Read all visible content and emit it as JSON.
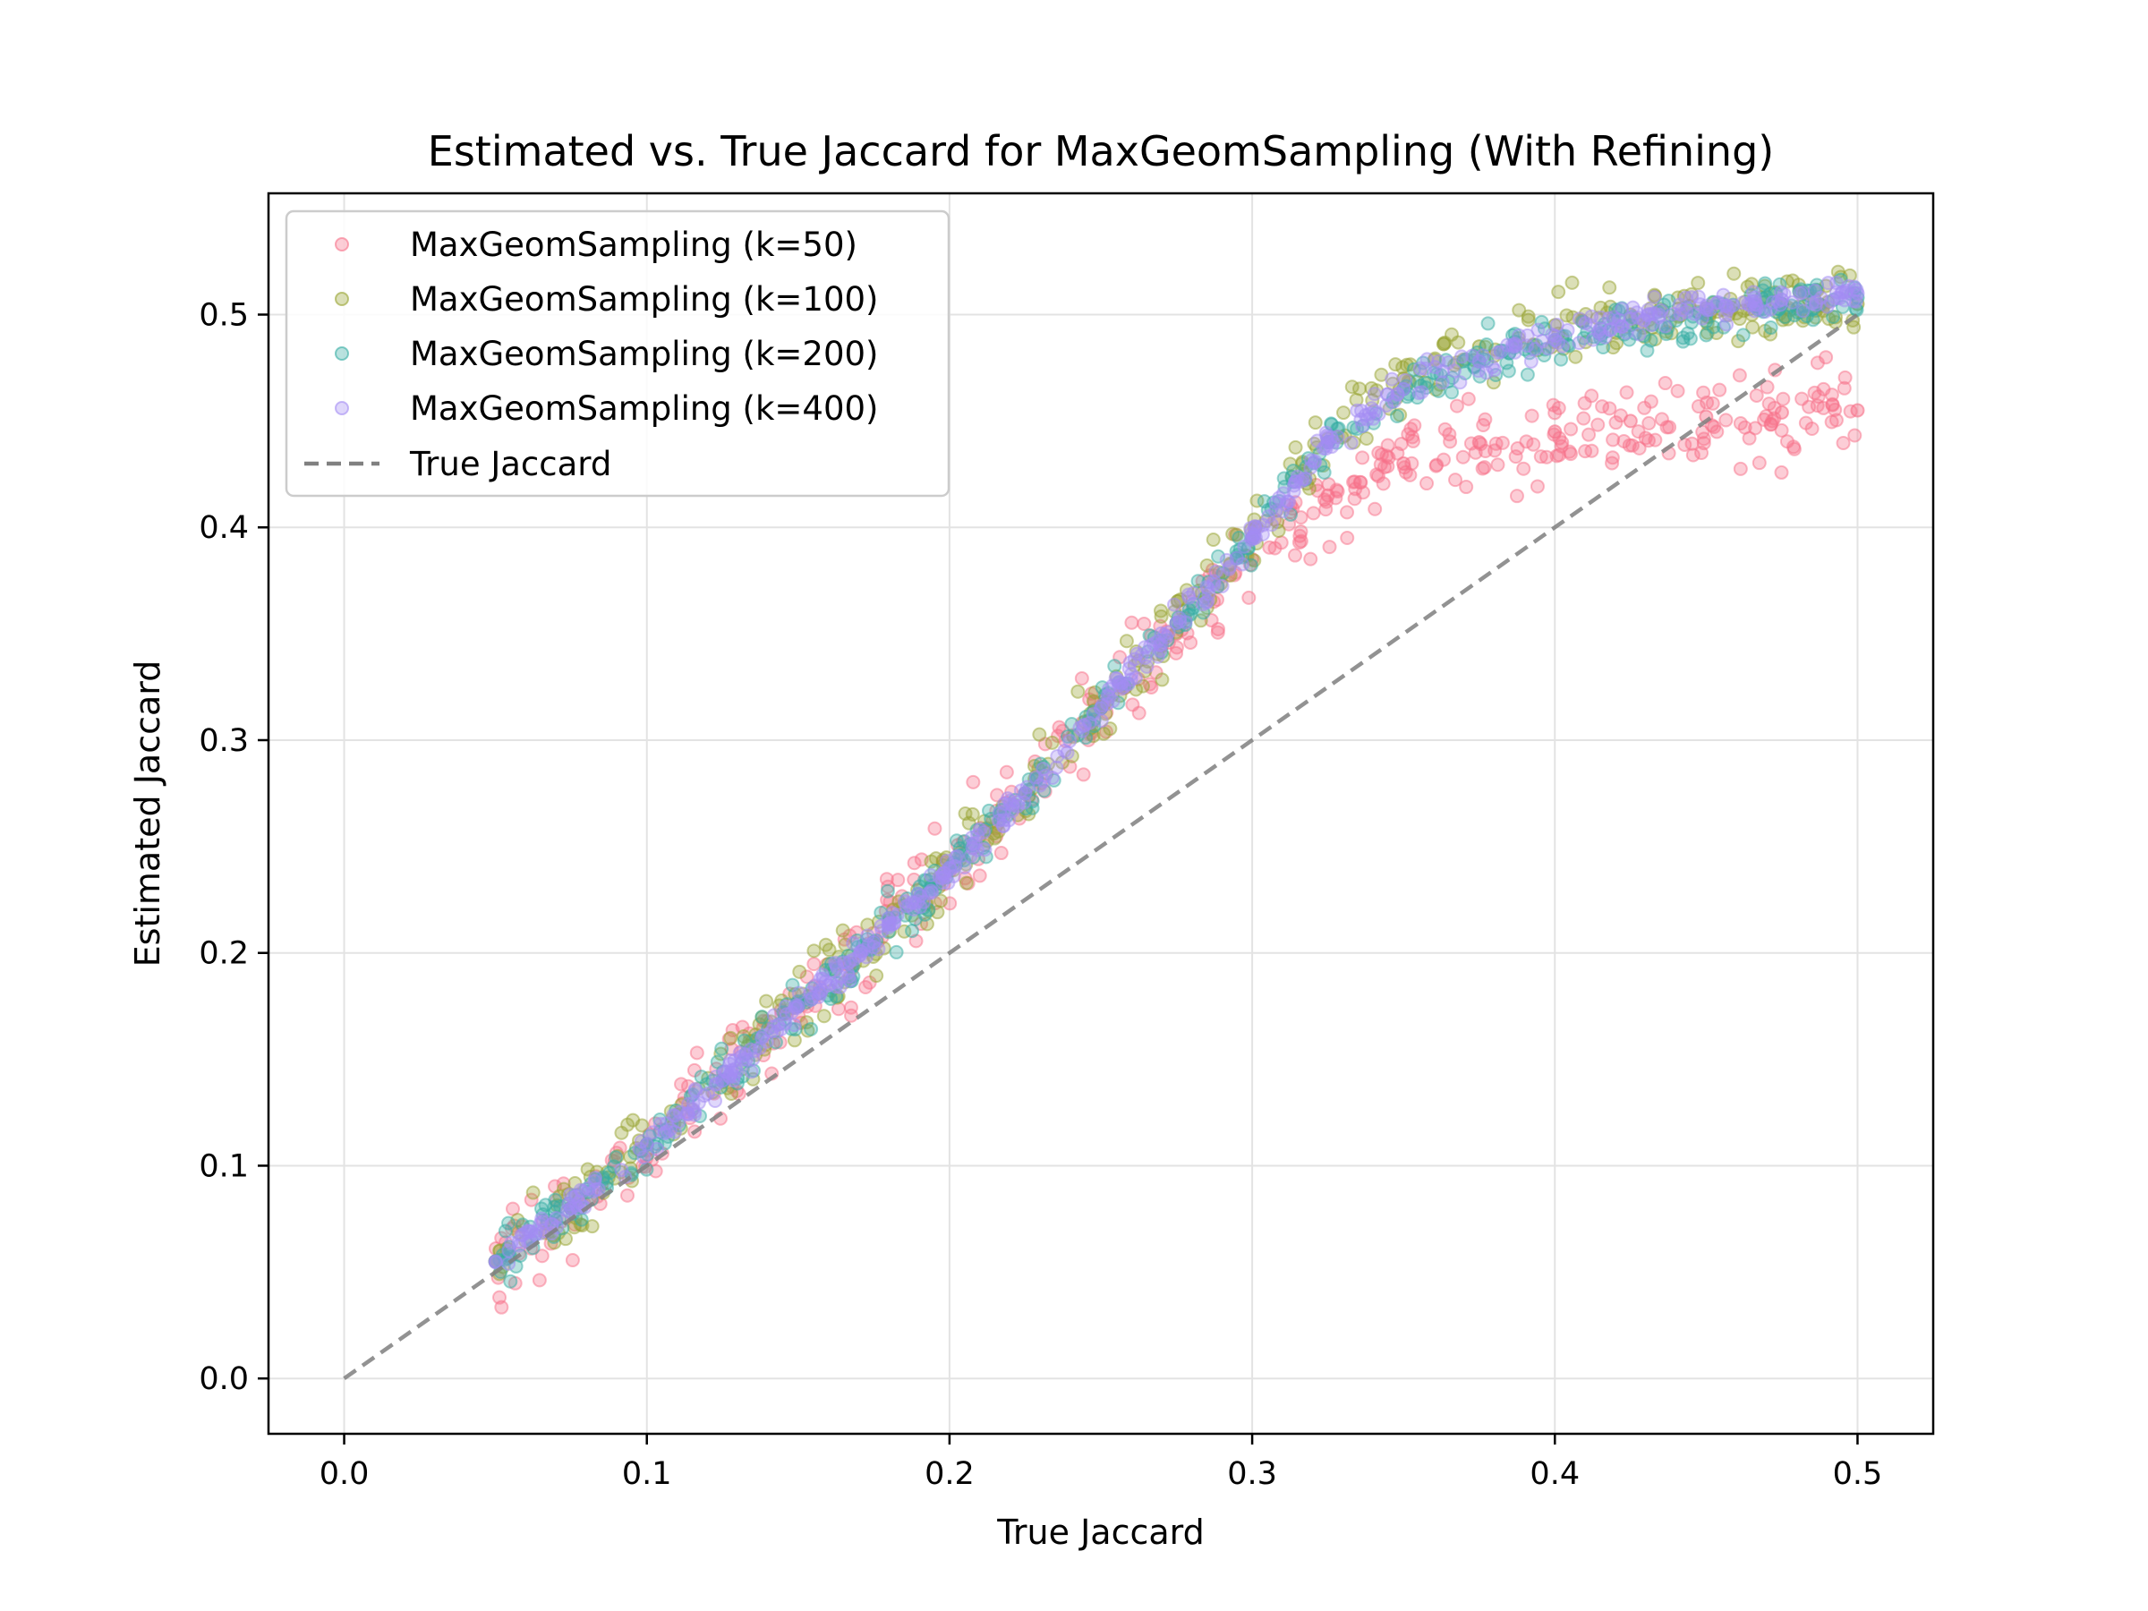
{
  "chart_data": {
    "type": "scatter",
    "title": "Estimated vs. True Jaccard for MaxGeomSampling (With Refining)",
    "xlabel": "True Jaccard",
    "ylabel": "Estimated Jaccard",
    "xlim": [
      -0.025,
      0.525
    ],
    "ylim": [
      -0.026,
      0.557
    ],
    "xticks": [
      0.0,
      0.1,
      0.2,
      0.3,
      0.4,
      0.5
    ],
    "xtick_labels": [
      "0.0",
      "0.1",
      "0.2",
      "0.3",
      "0.4",
      "0.5"
    ],
    "yticks": [
      0.0,
      0.1,
      0.2,
      0.3,
      0.4,
      0.5
    ],
    "ytick_labels": [
      "0.0",
      "0.1",
      "0.2",
      "0.3",
      "0.4",
      "0.5"
    ],
    "grid": true,
    "legend_position": "upper-left",
    "series": [
      {
        "name": "MaxGeomSampling (k=50)",
        "color": "#f77189",
        "x": [
          0.05,
          0.075,
          0.1,
          0.125,
          0.15,
          0.175,
          0.2,
          0.225,
          0.25,
          0.275,
          0.3,
          0.325,
          0.35,
          0.375,
          0.4,
          0.425,
          0.45,
          0.475,
          0.5
        ],
        "y": [
          0.055,
          0.08,
          0.11,
          0.14,
          0.175,
          0.205,
          0.24,
          0.275,
          0.315,
          0.35,
          0.385,
          0.415,
          0.43,
          0.44,
          0.445,
          0.45,
          0.452,
          0.454,
          0.455
        ]
      },
      {
        "name": "MaxGeomSampling (k=100)",
        "color": "#97a431",
        "x": [
          0.05,
          0.075,
          0.1,
          0.125,
          0.15,
          0.175,
          0.2,
          0.225,
          0.25,
          0.275,
          0.3,
          0.325,
          0.35,
          0.375,
          0.4,
          0.425,
          0.45,
          0.475,
          0.5
        ],
        "y": [
          0.055,
          0.08,
          0.11,
          0.14,
          0.175,
          0.205,
          0.24,
          0.275,
          0.315,
          0.355,
          0.395,
          0.44,
          0.47,
          0.485,
          0.495,
          0.5,
          0.503,
          0.505,
          0.505
        ]
      },
      {
        "name": "MaxGeomSampling (k=200)",
        "color": "#36ada4",
        "x": [
          0.05,
          0.075,
          0.1,
          0.125,
          0.15,
          0.175,
          0.2,
          0.225,
          0.25,
          0.275,
          0.3,
          0.325,
          0.35,
          0.375,
          0.4,
          0.425,
          0.45,
          0.475,
          0.5
        ],
        "y": [
          0.055,
          0.08,
          0.11,
          0.14,
          0.175,
          0.205,
          0.24,
          0.275,
          0.315,
          0.355,
          0.395,
          0.44,
          0.465,
          0.478,
          0.488,
          0.495,
          0.5,
          0.505,
          0.508
        ]
      },
      {
        "name": "MaxGeomSampling (k=400)",
        "color": "#a48cf4",
        "x": [
          0.05,
          0.075,
          0.1,
          0.125,
          0.15,
          0.175,
          0.2,
          0.225,
          0.25,
          0.275,
          0.3,
          0.325,
          0.35,
          0.375,
          0.4,
          0.425,
          0.45,
          0.475,
          0.5
        ],
        "y": [
          0.055,
          0.08,
          0.11,
          0.14,
          0.175,
          0.205,
          0.24,
          0.275,
          0.315,
          0.355,
          0.395,
          0.44,
          0.465,
          0.478,
          0.49,
          0.498,
          0.503,
          0.507,
          0.51
        ]
      }
    ],
    "reference_line": {
      "name": "True Jaccard",
      "style": "dashed",
      "color": "#808080",
      "x": [
        0.0,
        0.5
      ],
      "y": [
        0.0,
        0.5
      ]
    }
  }
}
